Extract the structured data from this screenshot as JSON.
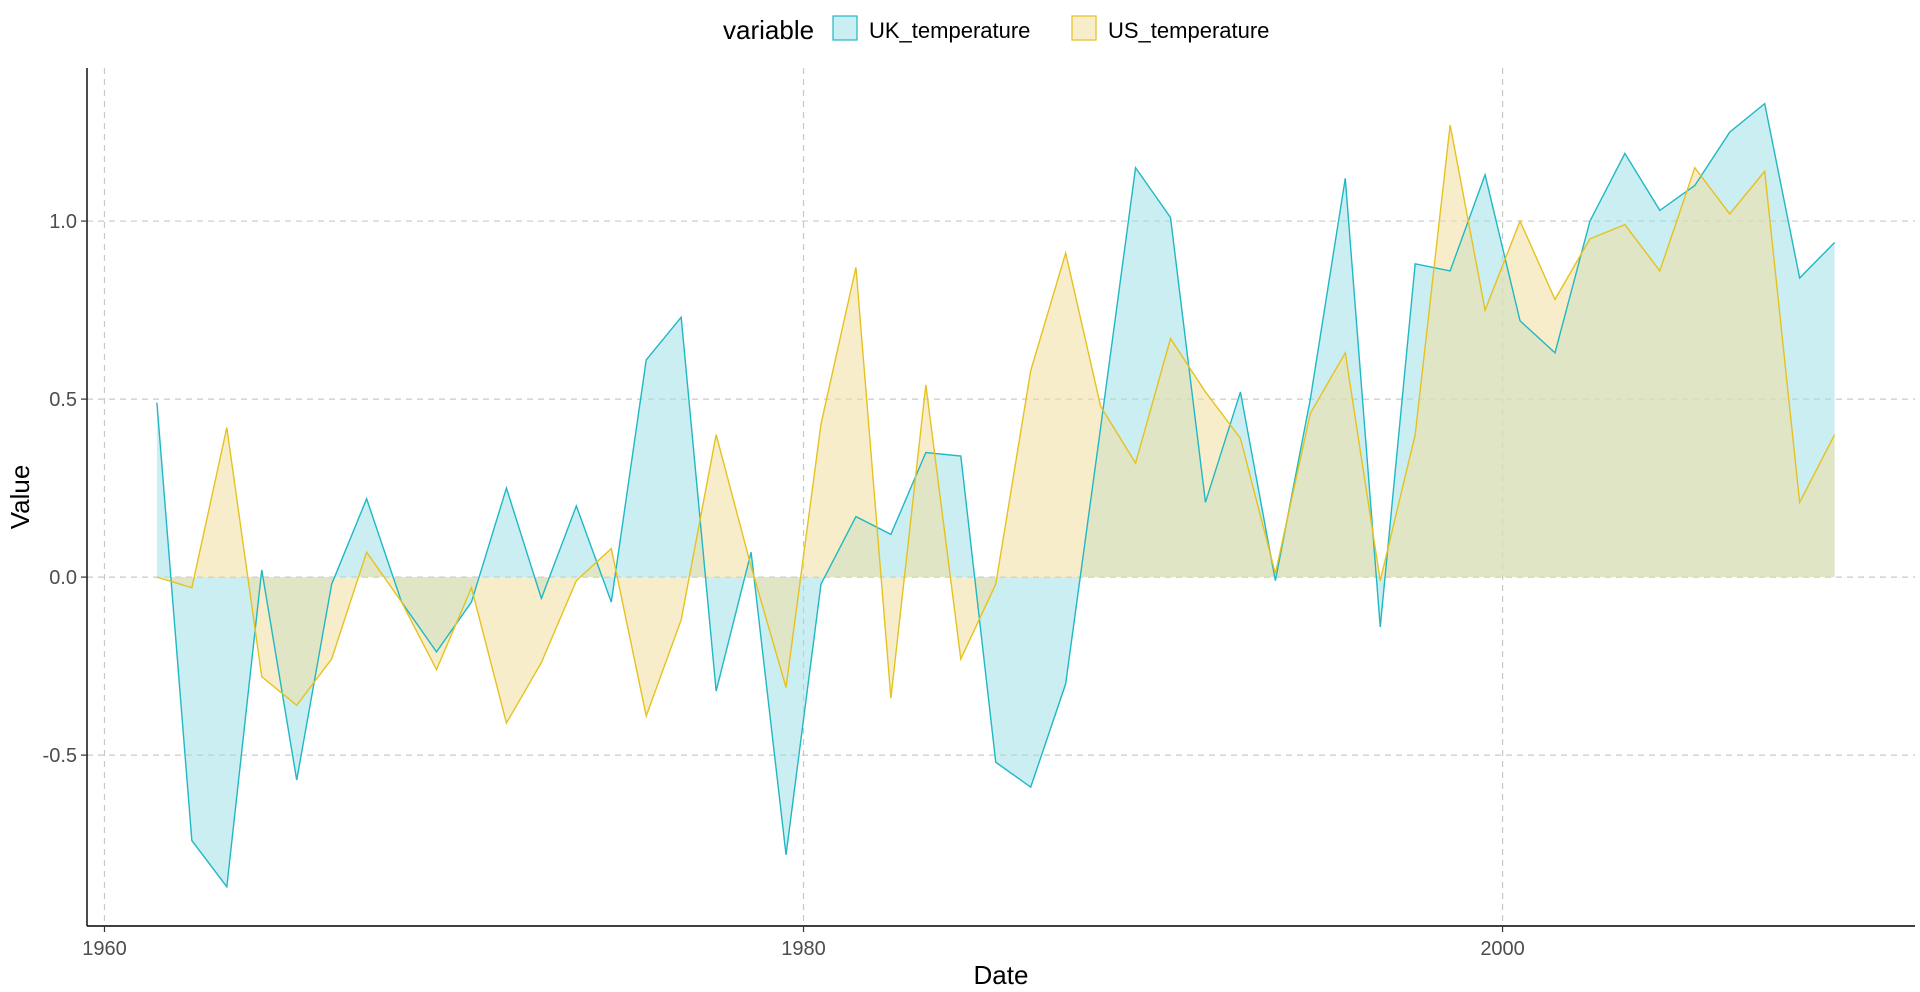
{
  "chart_data": {
    "type": "area",
    "title": "",
    "xlabel": "Date",
    "ylabel": "Value",
    "xlim": [
      1959.5,
      2011.8
    ],
    "ylim": [
      -0.98,
      1.43
    ],
    "x_ticks": [
      1960,
      1980,
      2000
    ],
    "y_ticks": [
      -0.5,
      0.0,
      0.5,
      1.0
    ],
    "y_tick_labels": [
      "-0.5",
      "0.0",
      "0.5",
      "1.0"
    ],
    "grid": true,
    "legend": {
      "title": "variable",
      "position": "top"
    },
    "x": [
      1961.5,
      1962.5,
      1963.5,
      1964.5,
      1965.5,
      1966.5,
      1967.5,
      1968.5,
      1969.5,
      1970.5,
      1971.5,
      1972.5,
      1973.5,
      1974.5,
      1975.5,
      1976.5,
      1977.5,
      1978.5,
      1979.5,
      1980.5,
      1981.5,
      1982.5,
      1983.5,
      1984.5,
      1985.5,
      1986.5,
      1987.5,
      1988.5,
      1989.5,
      1990.5,
      1991.5,
      1992.5,
      1993.5,
      1994.5,
      1995.5,
      1996.5,
      1997.5,
      1998.5,
      1999.5,
      2000.5,
      2001.5,
      2002.5,
      2003.5,
      2004.5,
      2005.5,
      2006.5,
      2007.5,
      2008.5,
      2009.5,
      2010.5
    ],
    "series": [
      {
        "name": "UK_temperature",
        "line_color": "#1fb8c4",
        "fill_color": "#9ee0e5",
        "values": [
          0.49,
          -0.74,
          -0.87,
          0.02,
          -0.57,
          -0.02,
          0.22,
          -0.07,
          -0.21,
          -0.07,
          0.25,
          -0.06,
          0.2,
          -0.07,
          0.61,
          0.73,
          -0.32,
          0.07,
          -0.78,
          -0.02,
          0.17,
          0.12,
          0.35,
          0.34,
          -0.52,
          -0.59,
          -0.3,
          0.42,
          1.15,
          1.01,
          0.21,
          0.52,
          -0.01,
          0.5,
          1.12,
          -0.14,
          0.88,
          0.86,
          1.13,
          0.72,
          0.63,
          1.0,
          1.19,
          1.03,
          1.1,
          1.25,
          1.33,
          0.84,
          0.94,
          null
        ]
      },
      {
        "name": "US_temperature",
        "line_color": "#e6c21e",
        "fill_color": "#f2dfa0",
        "values": [
          0.0,
          -0.03,
          0.42,
          -0.28,
          -0.36,
          -0.23,
          0.07,
          -0.07,
          -0.26,
          -0.03,
          -0.41,
          -0.24,
          -0.01,
          0.08,
          -0.39,
          -0.12,
          0.4,
          0.03,
          -0.31,
          0.43,
          0.87,
          -0.34,
          0.54,
          -0.23,
          -0.02,
          0.58,
          0.91,
          0.48,
          0.32,
          0.67,
          0.52,
          0.39,
          0.01,
          0.46,
          0.63,
          -0.01,
          0.4,
          1.27,
          0.75,
          1.0,
          0.78,
          0.95,
          0.99,
          0.86,
          1.15,
          1.02,
          1.14,
          0.21,
          0.4,
          null
        ]
      }
    ]
  }
}
